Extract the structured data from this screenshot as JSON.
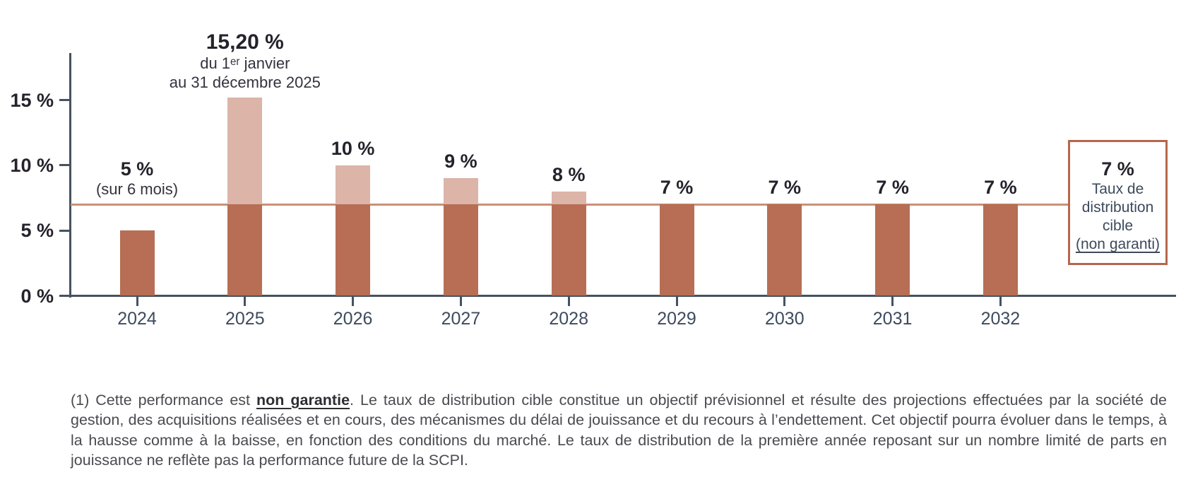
{
  "chart_data": {
    "type": "bar",
    "title": "",
    "xlabel": "",
    "ylabel": "",
    "grid": false,
    "legend": false,
    "categories": [
      "2024",
      "2025",
      "2026",
      "2027",
      "2028",
      "2029",
      "2030",
      "2031",
      "2032"
    ],
    "values": [
      5,
      15.2,
      10,
      9,
      8,
      7,
      7,
      7,
      7
    ],
    "bar_labels": [
      {
        "value": "5 %",
        "sub": [
          "(sur 6 mois)"
        ]
      },
      {
        "value": "15,20 %",
        "sub": [
          "du 1ᵉʳ janvier",
          "au 31 décembre 2025"
        ]
      },
      {
        "value": "10 %",
        "sub": []
      },
      {
        "value": "9 %",
        "sub": []
      },
      {
        "value": "8 %",
        "sub": []
      },
      {
        "value": "7 %",
        "sub": []
      },
      {
        "value": "7 %",
        "sub": []
      },
      {
        "value": "7 %",
        "sub": []
      },
      {
        "value": "7 %",
        "sub": []
      }
    ],
    "y_ticks": [
      {
        "value": 0,
        "label": "0 %"
      },
      {
        "value": 5,
        "label": "5 %"
      },
      {
        "value": 10,
        "label": "10 %"
      },
      {
        "value": 15,
        "label": "15 %"
      }
    ],
    "ylim": [
      0,
      18.7
    ],
    "target_line": {
      "value": 7,
      "label": "Taux de distribution cible (non garanti)"
    },
    "colors": {
      "bar_below_target": "#b76e54",
      "bar_above_target": "#dcb4a8",
      "target_line": "#cb9076",
      "axis": "#46525f",
      "value_label": "#25222b",
      "year_label": "#3d4b5e",
      "box_border": "#b5674c"
    }
  },
  "target_box": {
    "rate": "7 %",
    "lines": [
      "Taux de",
      "distribution",
      "cible"
    ],
    "underlined": "(non garanti)"
  },
  "footnote": {
    "prefix": "(1) Cette performance est ",
    "emphasis": "non garantie",
    "rest": ". Le taux de distribution cible constitue un objectif prévisionnel et résulte des projections effectuées par la société de gestion, des acquisitions réalisées et en cours, des mécanismes du délai de jouissance et du recours à l’endettement. Cet objectif pourra évoluer dans le temps, à la hausse comme à la baisse, en fonction des conditions du marché. Le taux de distribution de la première année reposant sur un nombre limité de parts en jouissance ne reflète pas la performance future de la SCPI."
  }
}
